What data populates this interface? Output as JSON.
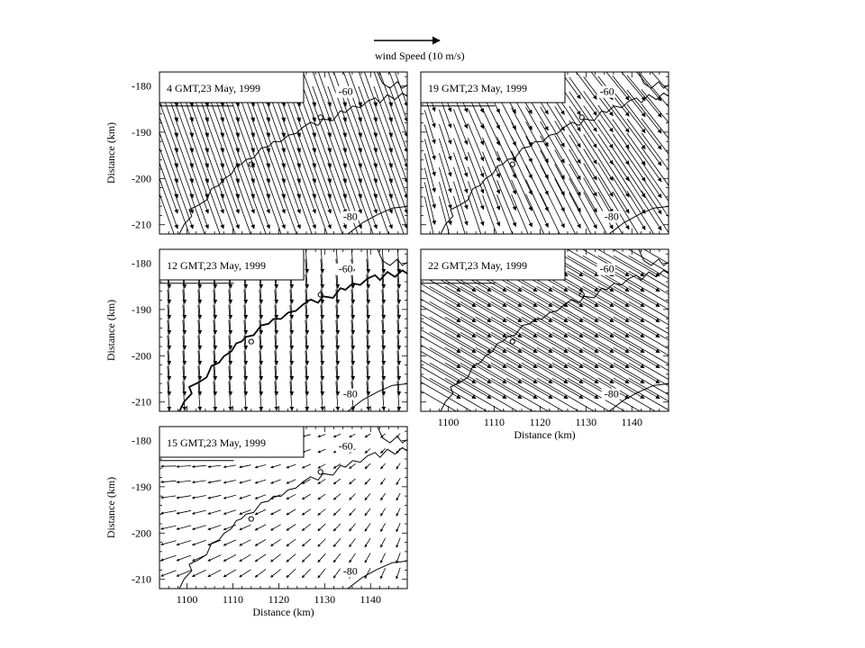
{
  "legend": {
    "reference_vector_label": "wind Speed (10 m/s)",
    "reference_speed": 10,
    "placement": "top-center"
  },
  "chart_data": [
    {
      "type": "quiver",
      "title": "4 GMT,23 May, 1999",
      "xlabel": "",
      "ylabel": "Distance (km)",
      "xlim": [
        1094,
        1148
      ],
      "ylim": [
        -212,
        -177
      ],
      "xticks": [],
      "yticks": [
        -180,
        -190,
        -200,
        -210
      ],
      "contours": [
        {
          "label": "-60",
          "x": 1133,
          "y": -182
        },
        {
          "label": "-80",
          "x": 1134,
          "y": -209
        }
      ],
      "wind": {
        "u": 2.8,
        "v": -7.8,
        "gain": 0.0,
        "center_x": 1120,
        "center_y": -195,
        "speed_note": ""
      }
    },
    {
      "type": "quiver",
      "title": "19 GMT,23 May, 1999",
      "xlabel": "",
      "ylabel": "",
      "xlim": [
        1094,
        1148
      ],
      "ylim": [
        -212,
        -177
      ],
      "xticks": [],
      "yticks": [],
      "contours": [
        {
          "label": "-60",
          "x": 1133,
          "y": -182
        },
        {
          "label": "-80",
          "x": 1134,
          "y": -209
        }
      ],
      "wind": {
        "u": 3.5,
        "v": -6.5,
        "gain": 0.32,
        "center_x": 1120,
        "center_y": -194,
        "speed_note": ""
      }
    },
    {
      "type": "quiver",
      "title": "12 GMT,23 May, 1999",
      "xlabel": "",
      "ylabel": "Distance (km)",
      "xlim": [
        1094,
        1148
      ],
      "ylim": [
        -212,
        -177
      ],
      "xticks": [],
      "yticks": [
        -180,
        -190,
        -200,
        -210
      ],
      "contours": [
        {
          "label": "-60",
          "x": 1133,
          "y": -182
        },
        {
          "label": "-80",
          "x": 1134,
          "y": -209
        }
      ],
      "wind": {
        "u": 0.3,
        "v": -4.5,
        "gain": 0.0,
        "center_x": 1120,
        "center_y": -195,
        "speed_note": ""
      }
    },
    {
      "type": "quiver",
      "title": "22 GMT,23 May, 1999",
      "xlabel": "Distance (km)",
      "ylabel": "",
      "xlim": [
        1094,
        1148
      ],
      "ylim": [
        -212,
        -177
      ],
      "xticks": [
        1100,
        1110,
        1120,
        1130,
        1140
      ],
      "yticks": [],
      "contours": [
        {
          "label": "-60",
          "x": 1133,
          "y": -182
        },
        {
          "label": "-80",
          "x": 1134,
          "y": -209
        }
      ],
      "wind": {
        "u": 9.5,
        "v": -5.5,
        "gain": 0.0,
        "center_x": 1120,
        "center_y": -195,
        "speed_note": ""
      }
    },
    {
      "type": "quiver",
      "title": "15 GMT,23 May, 1999",
      "xlabel": "Distance (km)",
      "ylabel": "Distance (km)",
      "xlim": [
        1094,
        1148
      ],
      "ylim": [
        -212,
        -177
      ],
      "xticks": [
        1100,
        1110,
        1120,
        1130,
        1140
      ],
      "yticks": [
        -180,
        -190,
        -200,
        -210
      ],
      "contours": [
        {
          "label": "-60",
          "x": 1133,
          "y": -182
        },
        {
          "label": "-80",
          "x": 1134,
          "y": -209
        }
      ],
      "wind": {
        "u": -1.6,
        "v": -0.7,
        "gain": 0.14,
        "center_x": 1118,
        "center_y": -193,
        "speed_note": ""
      }
    }
  ]
}
